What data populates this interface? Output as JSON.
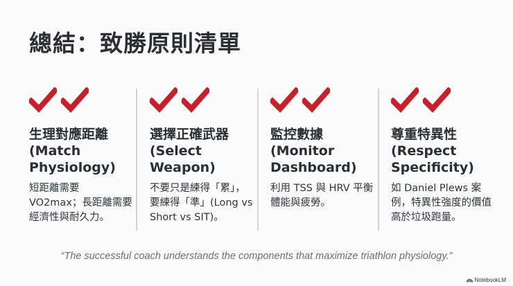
{
  "title": "總結：致勝原則清單",
  "accent_color": "#c8202a",
  "columns": [
    {
      "icon": "double-check-icon",
      "heading": "生理對應距離 (Match Physiology)",
      "body": "短距離需要 VO2max；長距離需要經濟性與耐久力。"
    },
    {
      "icon": "double-check-icon",
      "heading": "選擇正確武器 (Select Weapon)",
      "body": "不要只是練得「累」，要練得「準」(Long vs Short vs SIT)。"
    },
    {
      "icon": "double-check-icon",
      "heading": "監控數據 (Monitor Dashboard)",
      "body": "利用 TSS 與 HRV 平衡體能與疲勞。"
    },
    {
      "icon": "double-check-icon",
      "heading": "尊重特異性 (Respect Specificity)",
      "body": "如 Daniel Plews 案例，特異性強度的價值高於垃圾跑量。"
    }
  ],
  "quote": "“The successful coach understands the components that maximize triathlon physiology.”",
  "brand": "NotebookLM"
}
